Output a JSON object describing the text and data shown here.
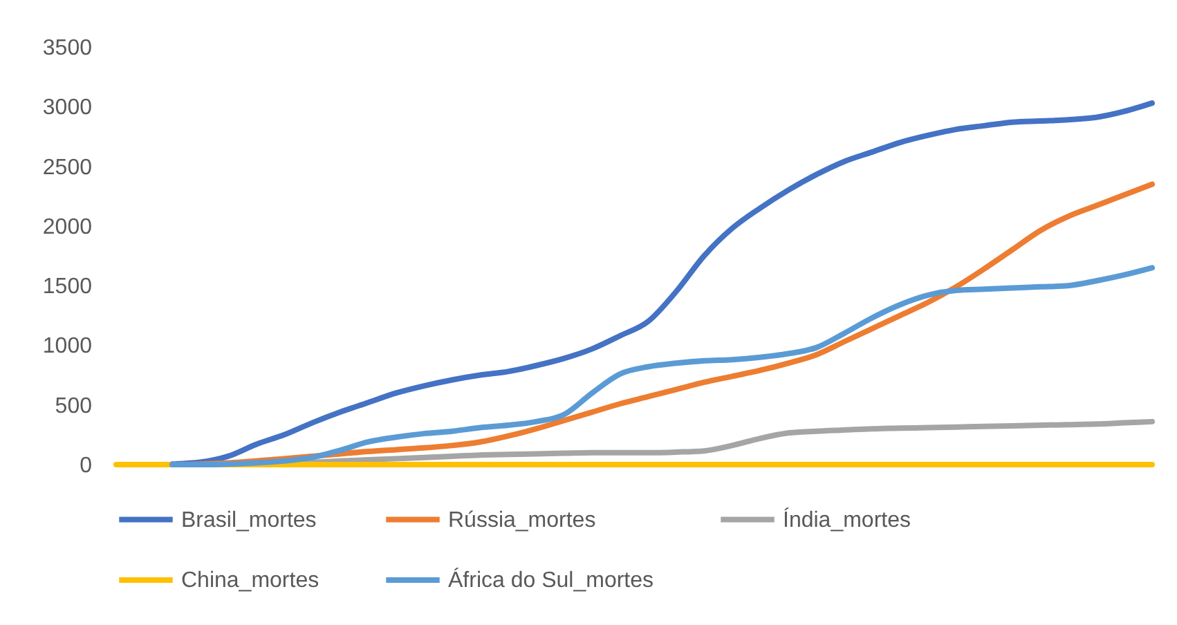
{
  "chart_data": {
    "type": "line",
    "categories": [
      null,
      null,
      null,
      null,
      null,
      null,
      null,
      null,
      null,
      null,
      null,
      null,
      null,
      null,
      null,
      null,
      null,
      null,
      null,
      null,
      null,
      null,
      null,
      null,
      null,
      null,
      null,
      null,
      null,
      null,
      null,
      null,
      null,
      null,
      null,
      null,
      null,
      null
    ],
    "series": [
      {
        "name": "Brasil_mortes",
        "color": "#4472c4",
        "values": [
          null,
          null,
          5,
          20,
          70,
          170,
          250,
          350,
          440,
          520,
          600,
          660,
          710,
          750,
          780,
          830,
          890,
          970,
          1080,
          1200,
          1450,
          1750,
          1980,
          2150,
          2300,
          2430,
          2540,
          2620,
          2700,
          2760,
          2810,
          2840,
          2870,
          2880,
          2890,
          2910,
          2960,
          3030
        ]
      },
      {
        "name": "Rússia_mortes",
        "color": "#ed7d31",
        "values": [
          null,
          null,
          0,
          5,
          15,
          30,
          50,
          70,
          90,
          110,
          125,
          140,
          160,
          190,
          240,
          300,
          370,
          440,
          510,
          570,
          630,
          690,
          740,
          790,
          850,
          920,
          1030,
          1140,
          1250,
          1360,
          1490,
          1640,
          1800,
          1960,
          2080,
          2170,
          2260,
          2350
        ]
      },
      {
        "name": "Índia_mortes",
        "color": "#a5a5a5",
        "values": [
          null,
          null,
          0,
          0,
          5,
          10,
          15,
          20,
          30,
          40,
          50,
          60,
          70,
          80,
          85,
          90,
          95,
          100,
          100,
          100,
          105,
          115,
          160,
          220,
          265,
          280,
          290,
          300,
          305,
          310,
          315,
          320,
          325,
          330,
          335,
          340,
          350,
          360
        ]
      },
      {
        "name": "China_mortes",
        "color": "#ffc000",
        "values": [
          0,
          0,
          0,
          0,
          0,
          0,
          0,
          0,
          0,
          0,
          0,
          0,
          0,
          0,
          0,
          0,
          0,
          0,
          0,
          0,
          0,
          0,
          0,
          0,
          0,
          0,
          0,
          0,
          0,
          0,
          0,
          0,
          0,
          0,
          0,
          0,
          0,
          0
        ]
      },
      {
        "name": "África do Sul_mortes",
        "color": "#5b9bd5",
        "values": [
          null,
          null,
          0,
          0,
          5,
          15,
          30,
          60,
          120,
          190,
          230,
          260,
          280,
          310,
          330,
          360,
          420,
          600,
          760,
          820,
          850,
          870,
          880,
          900,
          930,
          980,
          1100,
          1230,
          1340,
          1420,
          1460,
          1470,
          1480,
          1490,
          1500,
          1540,
          1590,
          1650
        ]
      }
    ],
    "ylim": [
      0,
      3500
    ],
    "yticks": [
      0,
      500,
      1000,
      1500,
      2000,
      2500,
      3000,
      3500
    ],
    "legend": "bottom"
  }
}
